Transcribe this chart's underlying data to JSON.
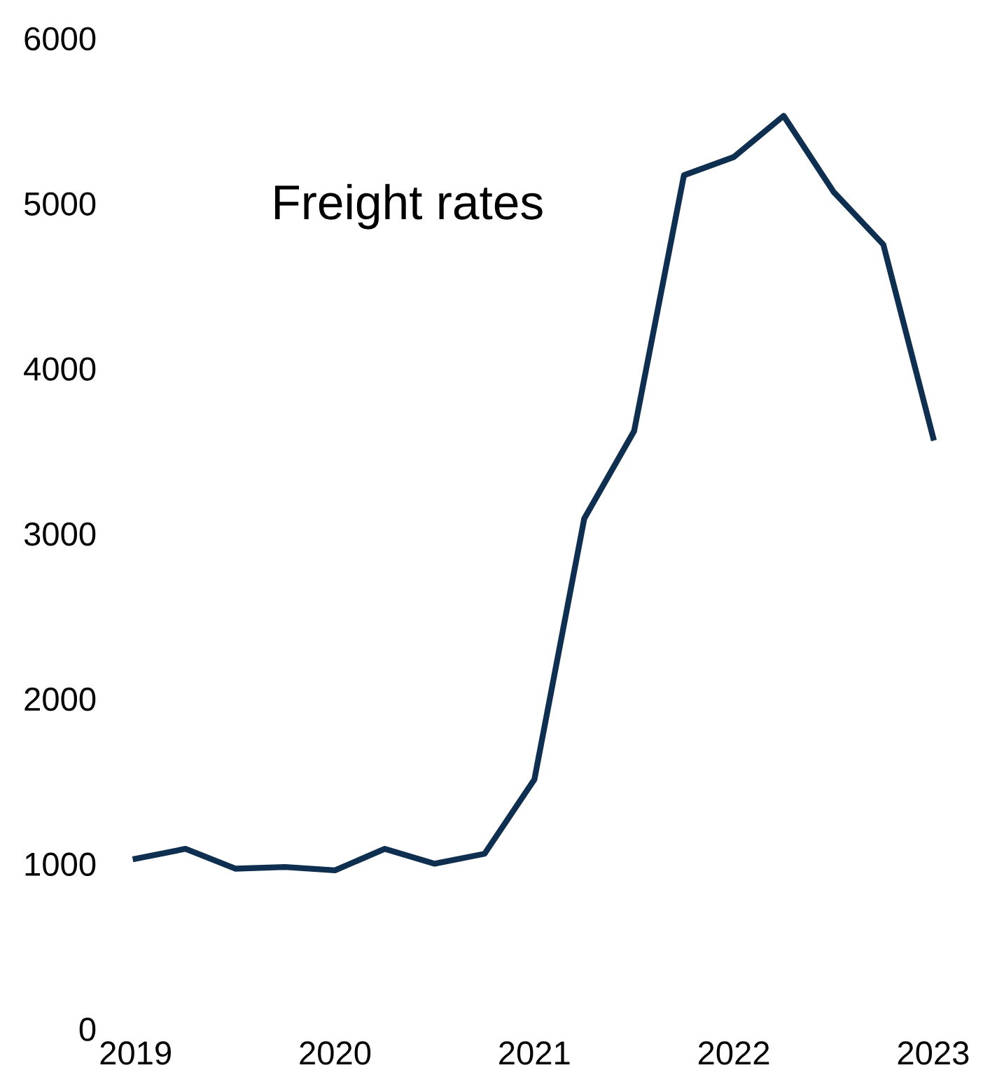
{
  "chart_data": {
    "type": "line",
    "title": "Freight rates",
    "x": [
      2019,
      2019.25,
      2019.5,
      2019.75,
      2020,
      2020.25,
      2020.5,
      2020.75,
      2021,
      2021.25,
      2021.5,
      2021.75,
      2022,
      2022.25,
      2022.5,
      2022.75,
      2023
    ],
    "series": [
      {
        "color": "#0e2f4f",
        "values": [
          1030,
          1090,
          970,
          980,
          960,
          1090,
          1000,
          1060,
          1510,
          3090,
          3620,
          5170,
          5280,
          5530,
          5070,
          4750,
          3580
        ]
      }
    ],
    "xlim": [
      2019,
      2023
    ],
    "xticks": [
      2019,
      2020,
      2021,
      2022,
      2023
    ],
    "ylim": [
      0,
      6000
    ],
    "yticks": [
      0,
      1000,
      2000,
      3000,
      4000,
      5000,
      6000
    ],
    "grid": false,
    "legend": false,
    "marker": "none",
    "line_style": "solid"
  }
}
